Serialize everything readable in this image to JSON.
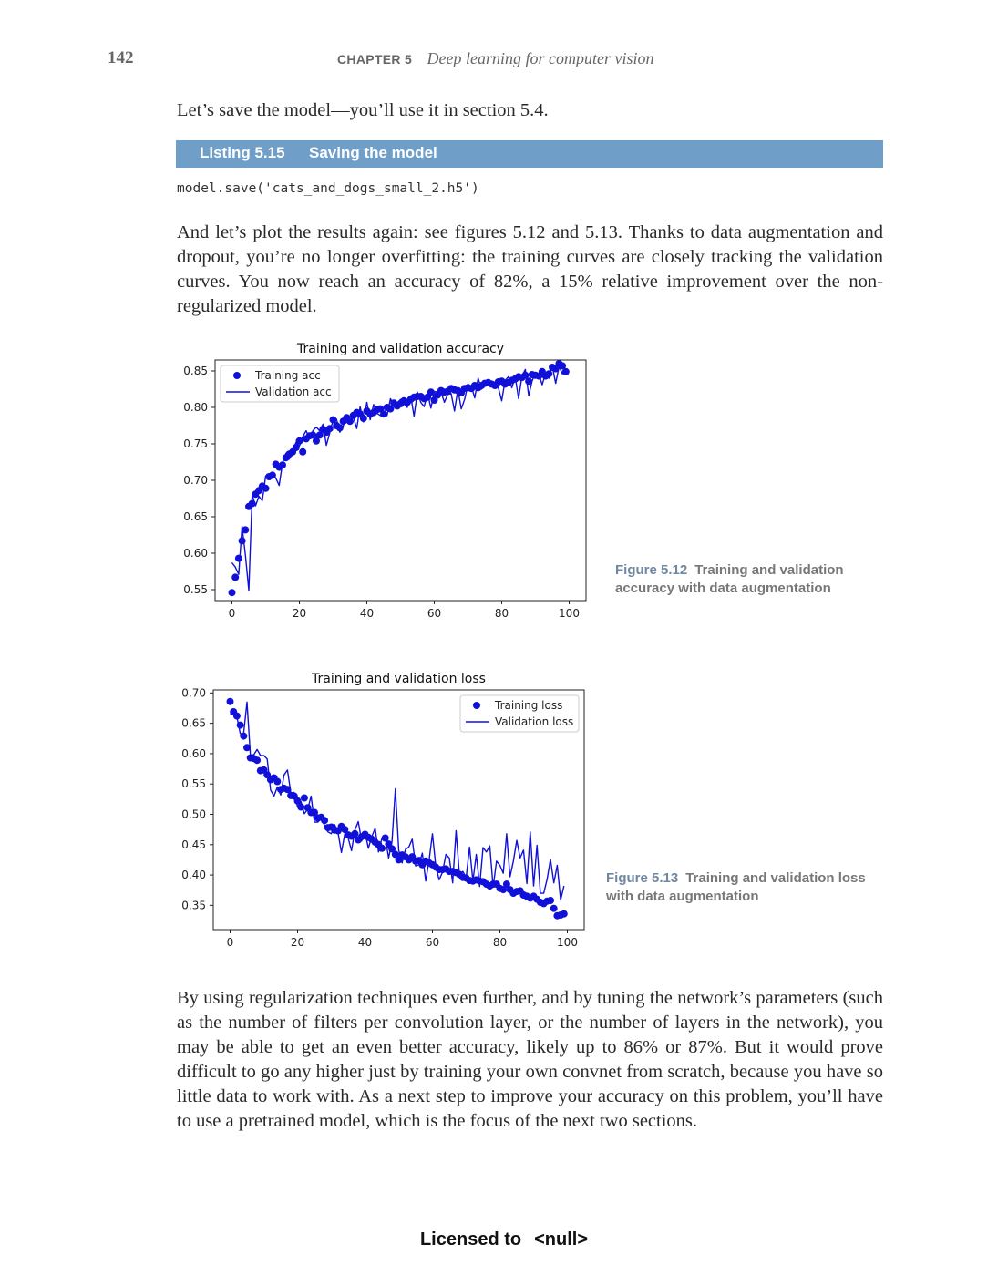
{
  "header": {
    "page_number": "142",
    "chapter_label": "CHAPTER 5",
    "chapter_title": "Deep learning for computer vision"
  },
  "intro_paragraph": "Let’s save the model—you’ll use it in section 5.4.",
  "listing": {
    "number": "Listing 5.15",
    "title": "Saving the model",
    "code": "model.save('cats_and_dogs_small_2.h5')"
  },
  "paragraph_2": "And let’s plot the results again: see figures 5.12 and 5.13. Thanks to data augmentation and dropout, you’re no longer overfitting: the training curves are closely tracking the validation curves. You now reach an accuracy of 82%, a 15% relative improvement over the non-regularized model.",
  "figure_1": {
    "number": "Figure 5.12",
    "caption": "Training and validation accuracy with data augmentation"
  },
  "figure_2": {
    "number": "Figure 5.13",
    "caption": "Training and validation loss with data augmentation"
  },
  "paragraph_3": "By using regularization techniques even further, and by tuning the network’s parameters (such as the number of filters per convolution layer, or the number of layers in the network), you may be able to get an even better accuracy, likely up to 86% or 87%. But it would prove difficult to go any higher just by training your own convnet from scratch, because you have so little data to work with. As a next step to improve your accuracy on this problem, you’ll have to use a pretrained model, which is the focus of the next two sections.",
  "footer": {
    "licensed_label": "Licensed to",
    "licensee": "<null>"
  },
  "colors": {
    "series": "#1010d8",
    "listing_bar": "#6f9fc9"
  },
  "chart_data": [
    {
      "type": "line",
      "title": "Training and validation accuracy",
      "xlabel": "",
      "ylabel": "",
      "xlim": [
        -5,
        105
      ],
      "ylim": [
        0.535,
        0.865
      ],
      "xticks": [
        0,
        20,
        40,
        60,
        80,
        100
      ],
      "yticks": [
        0.55,
        0.6,
        0.65,
        0.7,
        0.75,
        0.8,
        0.85
      ],
      "ytick_labels": [
        "0.55",
        "0.60",
        "0.65",
        "0.70",
        "0.75",
        "0.80",
        "0.85"
      ],
      "legend_position": "top-left",
      "series": [
        {
          "name": "Training acc",
          "style": "dots",
          "x": [
            0,
            1,
            2,
            3,
            4,
            5,
            6,
            7,
            8,
            9,
            10,
            11,
            12,
            13,
            14,
            15,
            16,
            17,
            18,
            19,
            20,
            21,
            22,
            23,
            24,
            25,
            26,
            27,
            28,
            29,
            30,
            31,
            32,
            33,
            34,
            35,
            36,
            37,
            38,
            39,
            40,
            41,
            42,
            43,
            44,
            45,
            46,
            47,
            48,
            49,
            50,
            51,
            52,
            53,
            54,
            55,
            56,
            57,
            58,
            59,
            60,
            61,
            62,
            63,
            64,
            65,
            66,
            67,
            68,
            69,
            70,
            71,
            72,
            73,
            74,
            75,
            76,
            77,
            78,
            79,
            80,
            81,
            82,
            83,
            84,
            85,
            86,
            87,
            88,
            89,
            90,
            91,
            92,
            93,
            94,
            95,
            96,
            97,
            98,
            99
          ],
          "values": [
            0.546,
            0.567,
            0.593,
            0.617,
            0.632,
            0.664,
            0.668,
            0.681,
            0.686,
            0.692,
            0.689,
            0.705,
            0.707,
            0.722,
            0.718,
            0.721,
            0.731,
            0.736,
            0.739,
            0.745,
            0.754,
            0.739,
            0.757,
            0.761,
            0.762,
            0.754,
            0.762,
            0.77,
            0.766,
            0.771,
            0.783,
            0.775,
            0.772,
            0.781,
            0.786,
            0.781,
            0.789,
            0.793,
            0.791,
            0.785,
            0.795,
            0.791,
            0.793,
            0.797,
            0.798,
            0.791,
            0.8,
            0.798,
            0.806,
            0.802,
            0.805,
            0.809,
            0.807,
            0.811,
            0.814,
            0.815,
            0.815,
            0.812,
            0.814,
            0.821,
            0.81,
            0.817,
            0.823,
            0.821,
            0.822,
            0.826,
            0.824,
            0.823,
            0.82,
            0.826,
            0.827,
            0.826,
            0.83,
            0.827,
            0.83,
            0.833,
            0.834,
            0.832,
            0.83,
            0.835,
            0.836,
            0.832,
            0.834,
            0.837,
            0.839,
            0.842,
            0.841,
            0.844,
            0.836,
            0.845,
            0.844,
            0.843,
            0.849,
            0.843,
            0.846,
            0.855,
            0.853,
            0.86,
            0.857,
            0.849
          ]
        },
        {
          "name": "Validation acc",
          "style": "line",
          "x": [
            0,
            1,
            2,
            3,
            4,
            5,
            6,
            7,
            8,
            9,
            10,
            11,
            12,
            13,
            14,
            15,
            16,
            17,
            18,
            19,
            20,
            21,
            22,
            23,
            24,
            25,
            26,
            27,
            28,
            29,
            30,
            31,
            32,
            33,
            34,
            35,
            36,
            37,
            38,
            39,
            40,
            41,
            42,
            43,
            44,
            45,
            46,
            47,
            48,
            49,
            50,
            51,
            52,
            53,
            54,
            55,
            56,
            57,
            58,
            59,
            60,
            61,
            62,
            63,
            64,
            65,
            66,
            67,
            68,
            69,
            70,
            71,
            72,
            73,
            74,
            75,
            76,
            77,
            78,
            79,
            80,
            81,
            82,
            83,
            84,
            85,
            86,
            87,
            88,
            89,
            90,
            91,
            92,
            93,
            94,
            95,
            96,
            97,
            98,
            99
          ],
          "values": [
            0.587,
            0.581,
            0.571,
            0.637,
            0.597,
            0.549,
            0.68,
            0.665,
            0.678,
            0.672,
            0.706,
            0.706,
            0.71,
            0.703,
            0.693,
            0.724,
            0.737,
            0.729,
            0.738,
            0.752,
            0.747,
            0.76,
            0.768,
            0.757,
            0.768,
            0.773,
            0.768,
            0.777,
            0.748,
            0.765,
            0.783,
            0.784,
            0.766,
            0.775,
            0.786,
            0.781,
            0.787,
            0.771,
            0.801,
            0.78,
            0.807,
            0.783,
            0.804,
            0.792,
            0.789,
            0.787,
            0.789,
            0.812,
            0.803,
            0.806,
            0.811,
            0.805,
            0.8,
            0.816,
            0.788,
            0.821,
            0.807,
            0.801,
            0.82,
            0.799,
            0.822,
            0.821,
            0.821,
            0.807,
            0.818,
            0.819,
            0.795,
            0.825,
            0.798,
            0.811,
            0.832,
            0.829,
            0.813,
            0.84,
            0.825,
            0.832,
            0.836,
            0.834,
            0.835,
            0.827,
            0.809,
            0.837,
            0.842,
            0.827,
            0.842,
            0.812,
            0.843,
            0.852,
            0.816,
            0.836,
            0.847,
            0.846,
            0.831,
            0.847,
            0.84,
            0.857,
            0.833,
            0.856,
            0.846,
            0.85
          ]
        }
      ]
    },
    {
      "type": "line",
      "title": "Training and validation loss",
      "xlabel": "",
      "ylabel": "",
      "xlim": [
        -5,
        105
      ],
      "ylim": [
        0.31,
        0.705
      ],
      "xticks": [
        0,
        20,
        40,
        60,
        80,
        100
      ],
      "yticks": [
        0.35,
        0.4,
        0.45,
        0.5,
        0.55,
        0.6,
        0.65,
        0.7
      ],
      "ytick_labels": [
        "0.35",
        "0.40",
        "0.45",
        "0.50",
        "0.55",
        "0.60",
        "0.65",
        "0.70"
      ],
      "legend_position": "top-right",
      "series": [
        {
          "name": "Training loss",
          "style": "dots",
          "x": [
            0,
            1,
            2,
            3,
            4,
            5,
            6,
            7,
            8,
            9,
            10,
            11,
            12,
            13,
            14,
            15,
            16,
            17,
            18,
            19,
            20,
            21,
            22,
            23,
            24,
            25,
            26,
            27,
            28,
            29,
            30,
            31,
            32,
            33,
            34,
            35,
            36,
            37,
            38,
            39,
            40,
            41,
            42,
            43,
            44,
            45,
            46,
            47,
            48,
            49,
            50,
            51,
            52,
            53,
            54,
            55,
            56,
            57,
            58,
            59,
            60,
            61,
            62,
            63,
            64,
            65,
            66,
            67,
            68,
            69,
            70,
            71,
            72,
            73,
            74,
            75,
            76,
            77,
            78,
            79,
            80,
            81,
            82,
            83,
            84,
            85,
            86,
            87,
            88,
            89,
            90,
            91,
            92,
            93,
            94,
            95,
            96,
            97,
            98,
            99
          ],
          "values": [
            0.686,
            0.669,
            0.662,
            0.647,
            0.629,
            0.61,
            0.593,
            0.592,
            0.589,
            0.572,
            0.573,
            0.565,
            0.557,
            0.56,
            0.554,
            0.541,
            0.543,
            0.541,
            0.531,
            0.53,
            0.522,
            0.512,
            0.527,
            0.511,
            0.503,
            0.503,
            0.494,
            0.495,
            0.49,
            0.478,
            0.479,
            0.474,
            0.473,
            0.48,
            0.475,
            0.466,
            0.464,
            0.468,
            0.458,
            0.463,
            0.467,
            0.462,
            0.459,
            0.454,
            0.45,
            0.444,
            0.461,
            0.451,
            0.443,
            0.434,
            0.425,
            0.433,
            0.43,
            0.425,
            0.43,
            0.423,
            0.424,
            0.417,
            0.423,
            0.42,
            0.417,
            0.413,
            0.409,
            0.409,
            0.41,
            0.406,
            0.406,
            0.404,
            0.401,
            0.396,
            0.395,
            0.391,
            0.39,
            0.392,
            0.39,
            0.389,
            0.385,
            0.382,
            0.385,
            0.385,
            0.378,
            0.376,
            0.385,
            0.376,
            0.37,
            0.373,
            0.374,
            0.367,
            0.365,
            0.362,
            0.365,
            0.36,
            0.355,
            0.353,
            0.357,
            0.358,
            0.345,
            0.333,
            0.334,
            0.336
          ]
        },
        {
          "name": "Validation loss",
          "style": "line",
          "x": [
            0,
            1,
            2,
            3,
            4,
            5,
            6,
            7,
            8,
            9,
            10,
            11,
            12,
            13,
            14,
            15,
            16,
            17,
            18,
            19,
            20,
            21,
            22,
            23,
            24,
            25,
            26,
            27,
            28,
            29,
            30,
            31,
            32,
            33,
            34,
            35,
            36,
            37,
            38,
            39,
            40,
            41,
            42,
            43,
            44,
            45,
            46,
            47,
            48,
            49,
            50,
            51,
            52,
            53,
            54,
            55,
            56,
            57,
            58,
            59,
            60,
            61,
            62,
            63,
            64,
            65,
            66,
            67,
            68,
            69,
            70,
            71,
            72,
            73,
            74,
            75,
            76,
            77,
            78,
            79,
            80,
            81,
            82,
            83,
            84,
            85,
            86,
            87,
            88,
            89,
            90,
            91,
            92,
            93,
            94,
            95,
            96,
            97,
            98,
            99
          ],
          "values": [
            0.666,
            0.664,
            0.661,
            0.633,
            0.633,
            0.685,
            0.598,
            0.598,
            0.607,
            0.597,
            0.597,
            0.591,
            0.54,
            0.53,
            0.545,
            0.532,
            0.565,
            0.573,
            0.535,
            0.536,
            0.512,
            0.521,
            0.501,
            0.508,
            0.53,
            0.487,
            0.487,
            0.493,
            0.482,
            0.471,
            0.468,
            0.483,
            0.47,
            0.437,
            0.468,
            0.461,
            0.44,
            0.474,
            0.488,
            0.456,
            0.471,
            0.444,
            0.463,
            0.477,
            0.438,
            0.46,
            0.463,
            0.428,
            0.455,
            0.542,
            0.441,
            0.42,
            0.442,
            0.446,
            0.459,
            0.415,
            0.417,
            0.436,
            0.39,
            0.424,
            0.468,
            0.414,
            0.392,
            0.405,
            0.434,
            0.428,
            0.387,
            0.473,
            0.4,
            0.406,
            0.396,
            0.446,
            0.39,
            0.434,
            0.381,
            0.445,
            0.438,
            0.448,
            0.38,
            0.423,
            0.416,
            0.403,
            0.468,
            0.397,
            0.423,
            0.457,
            0.428,
            0.441,
            0.386,
            0.471,
            0.382,
            0.449,
            0.37,
            0.37,
            0.393,
            0.426,
            0.387,
            0.416,
            0.359,
            0.382
          ]
        }
      ]
    }
  ]
}
